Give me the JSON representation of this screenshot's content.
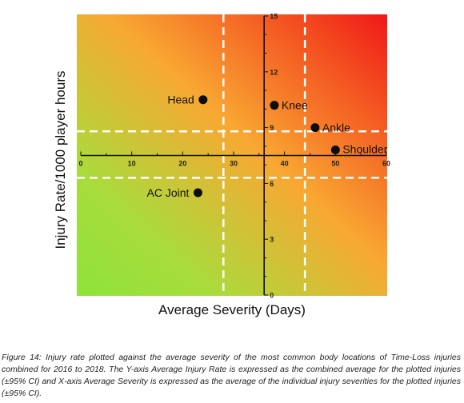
{
  "chart_data": {
    "type": "scatter",
    "xlabel": "Average Severity (Days)",
    "ylabel": "Injury Rate/1000 player hours",
    "xlim": [
      0,
      60
    ],
    "ylim": [
      0,
      15
    ],
    "x_axis_crosses_y_at": 7.5,
    "y_axis_crosses_x_at": 36,
    "x_ticks": [
      0,
      10,
      20,
      30,
      40,
      50,
      60
    ],
    "y_ticks": [
      0,
      3,
      6,
      9,
      12,
      15
    ],
    "x_tick_labels": [
      "0",
      "10",
      "20",
      "30",
      "40",
      "50",
      "60"
    ],
    "y_tick_labels": [
      "0",
      "3",
      "6",
      "9",
      "12",
      "15"
    ],
    "points": [
      {
        "label": "Head",
        "x": 24,
        "y": 10.5
      },
      {
        "label": "Knee",
        "x": 38,
        "y": 10.2
      },
      {
        "label": "Ankle",
        "x": 46,
        "y": 9.0
      },
      {
        "label": "Shoulder",
        "x": 50,
        "y": 7.8
      },
      {
        "label": "AC Joint",
        "x": 23,
        "y": 5.5
      }
    ],
    "ci_lines": {
      "vertical_x": [
        28,
        44
      ],
      "horizontal_y": [
        8.8,
        6.3
      ]
    },
    "background": {
      "gradient": "green bottom-left to red top-right",
      "colors": [
        "#8ee33c",
        "#f8a832",
        "#f01818"
      ]
    },
    "grid": false,
    "legend": "none"
  },
  "caption": "Figure 14: Injury rate plotted against the average severity of the most common body locations of Time-Loss injuries combined for 2016 to 2018. The Y-axis Average Injury Rate is expressed as the combined average for the plotted injuries (±95% CI) and X-axis Average Severity is expressed as the average of the individual injury severities for the plotted injuries (±95% CI)."
}
